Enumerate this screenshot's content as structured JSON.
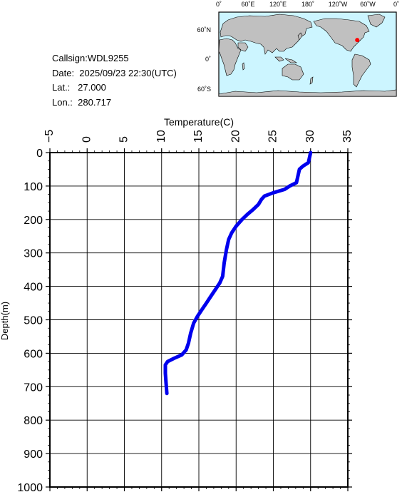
{
  "info": {
    "callsign": "Callsign:WDL9255",
    "date": "Date:  2025/09/23 22:30(UTC)",
    "lat": "Lat.:   27.000",
    "lon": "Lon.:  280.717"
  },
  "map": {
    "lon_labels": [
      "0˚",
      "60˚E",
      "120˚E",
      "180˚",
      "120˚W",
      "60˚W",
      "0˚"
    ],
    "lat_labels": [
      "60˚N",
      "0˚",
      "60˚S"
    ],
    "ocean_color": "#ccf5ff",
    "land_color": "#c0c0c0",
    "marker_color": "#ff0000",
    "marker_lat": 27.0,
    "marker_lon": 280.717
  },
  "chart_data": {
    "type": "line",
    "xlabel": "Temperature(C)",
    "ylabel": "Depth(m)",
    "xlim": [
      -5,
      35
    ],
    "ylim": [
      1000,
      0
    ],
    "x_ticks": [
      "-5",
      "0",
      "5",
      "10",
      "15",
      "20",
      "25",
      "30",
      "35"
    ],
    "y_ticks": [
      "0",
      "100",
      "200",
      "300",
      "400",
      "500",
      "600",
      "700",
      "800",
      "900",
      "1000"
    ],
    "grid": true,
    "series": [
      {
        "color": "#0000ee",
        "points": [
          [
            30.0,
            0
          ],
          [
            29.9,
            10
          ],
          [
            29.8,
            20
          ],
          [
            29.7,
            30
          ],
          [
            29.0,
            40
          ],
          [
            28.5,
            50
          ],
          [
            28.3,
            70
          ],
          [
            28.1,
            90
          ],
          [
            27.2,
            100
          ],
          [
            26.5,
            110
          ],
          [
            25.0,
            120
          ],
          [
            23.8,
            130
          ],
          [
            23.4,
            140
          ],
          [
            23.0,
            155
          ],
          [
            22.3,
            170
          ],
          [
            21.5,
            185
          ],
          [
            20.8,
            200
          ],
          [
            20.0,
            220
          ],
          [
            19.4,
            240
          ],
          [
            19.0,
            260
          ],
          [
            18.7,
            290
          ],
          [
            18.4,
            330
          ],
          [
            18.2,
            370
          ],
          [
            17.8,
            390
          ],
          [
            17.2,
            410
          ],
          [
            16.6,
            430
          ],
          [
            16.0,
            450
          ],
          [
            15.4,
            470
          ],
          [
            14.8,
            490
          ],
          [
            14.3,
            510
          ],
          [
            13.9,
            540
          ],
          [
            13.6,
            570
          ],
          [
            13.3,
            590
          ],
          [
            12.7,
            605
          ],
          [
            11.7,
            615
          ],
          [
            10.8,
            625
          ],
          [
            10.5,
            635
          ],
          [
            10.5,
            660
          ],
          [
            10.6,
            690
          ],
          [
            10.7,
            720
          ]
        ]
      }
    ]
  }
}
